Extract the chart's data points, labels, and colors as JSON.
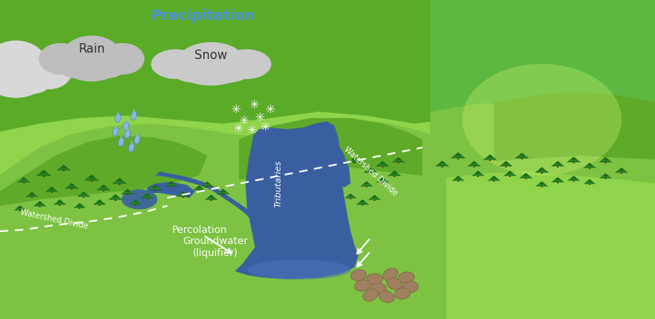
{
  "sky_colors": [
    "#3a9fc0",
    "#4aafd0",
    "#5bbfde",
    "#72cfe8",
    "#90daf0",
    "#aee6f8"
  ],
  "green_bright": "#7dc242",
  "green_mid": "#5faa28",
  "green_dark": "#4a9020",
  "green_right": "#5cb840",
  "green_hill_back": "#8fd44a",
  "ground_brown": "#6b4820",
  "ground_dark": "#3e2a08",
  "ground_left": "#7a5530",
  "water_blue": "#3a5fa0",
  "water_mid": "#4a70b8",
  "cloud_gray": "#b8b8b8",
  "cloud_light": "#d0d0d0",
  "cloud_white": "#e8e8e8",
  "rain_blue": "#7ab0d8",
  "snow_white": "#ffffff",
  "text_dark": "#333333",
  "text_blue": "#4a90d9",
  "text_white": "#ffffff",
  "title_precipitation": "Precipitation",
  "label_rain": "Rain",
  "label_snow": "Snow",
  "label_tributaries": "Tributaries",
  "label_wd": "Watershed Divide",
  "label_percolation": "Percolation",
  "label_groundwater": "Groundwater\n(liquifier)",
  "figsize": [
    8.22,
    4.0
  ],
  "dpi": 100
}
